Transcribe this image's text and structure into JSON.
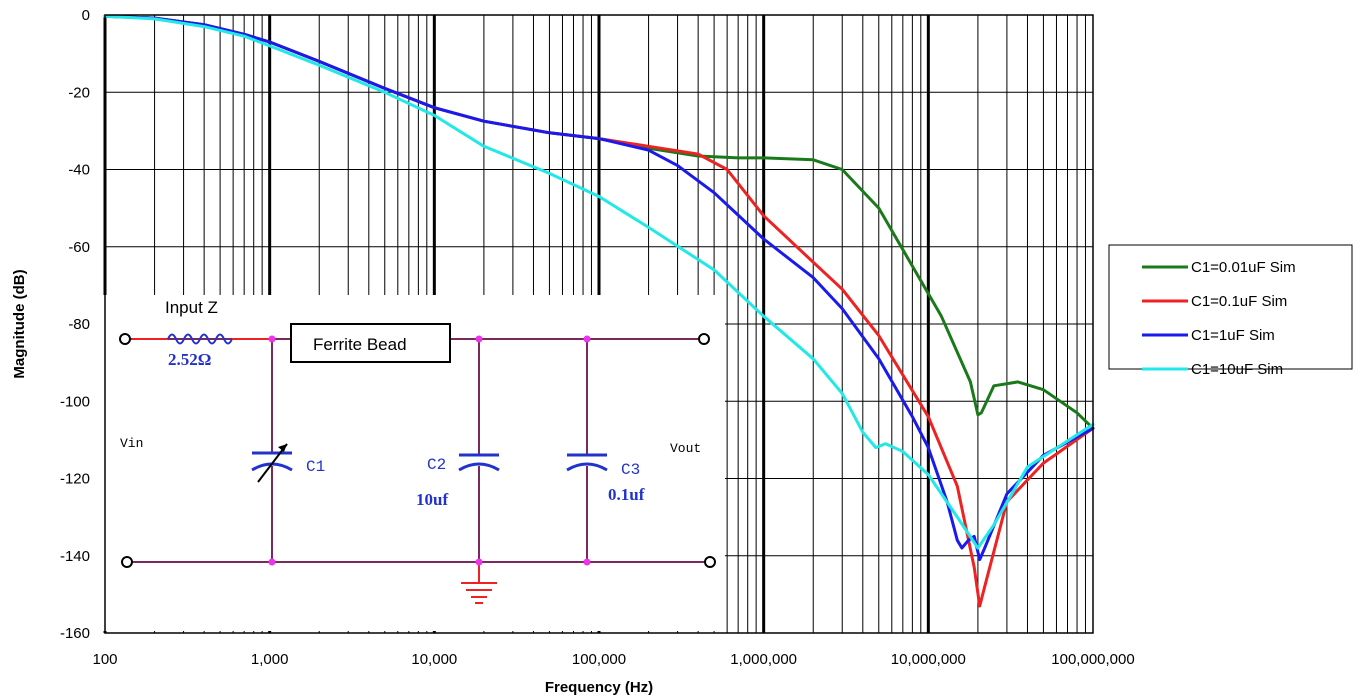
{
  "chart_data": {
    "type": "line",
    "x_scale": "log",
    "xlabel": "Frequency (Hz)",
    "ylabel": "Magnitude (dB)",
    "xlim": [
      100,
      100000000
    ],
    "ylim": [
      -160,
      0
    ],
    "x_ticks": [
      "100",
      "1,000",
      "10,000",
      "100,000",
      "1,000,000",
      "10,000,000",
      "100,000,000"
    ],
    "y_ticks": [
      "0",
      "-20",
      "-40",
      "-60",
      "-80",
      "-100",
      "-120",
      "-140",
      "-160"
    ],
    "grid": true,
    "legend_position": "right",
    "series": [
      {
        "name": "C1=0.01uF Sim",
        "color": "#1a7a1a",
        "points": [
          [
            100,
            -0.3
          ],
          [
            200,
            -0.8
          ],
          [
            400,
            -2.5
          ],
          [
            700,
            -5
          ],
          [
            1000,
            -7
          ],
          [
            2000,
            -12
          ],
          [
            5000,
            -19
          ],
          [
            10000,
            -24
          ],
          [
            20000,
            -27.5
          ],
          [
            50000,
            -30.5
          ],
          [
            100000,
            -32
          ],
          [
            200000,
            -34.5
          ],
          [
            400000,
            -36.5
          ],
          [
            700000,
            -37
          ],
          [
            1000000,
            -37
          ],
          [
            2000000,
            -37.5
          ],
          [
            3000000,
            -40
          ],
          [
            5000000,
            -50
          ],
          [
            8000000,
            -65
          ],
          [
            12000000,
            -78
          ],
          [
            18000000,
            -95
          ],
          [
            20000000,
            -103.5
          ],
          [
            21000000,
            -103
          ],
          [
            25000000,
            -96
          ],
          [
            35000000,
            -95
          ],
          [
            50000000,
            -97
          ],
          [
            80000000,
            -103
          ],
          [
            100000000,
            -107
          ]
        ]
      },
      {
        "name": "C1=0.1uF Sim",
        "color": "#ee2222",
        "points": [
          [
            100,
            -0.3
          ],
          [
            200,
            -0.8
          ],
          [
            400,
            -2.5
          ],
          [
            700,
            -5
          ],
          [
            1000,
            -7
          ],
          [
            2000,
            -12
          ],
          [
            5000,
            -19
          ],
          [
            10000,
            -24
          ],
          [
            20000,
            -27.5
          ],
          [
            50000,
            -30.5
          ],
          [
            100000,
            -32
          ],
          [
            200000,
            -34
          ],
          [
            400000,
            -36
          ],
          [
            600000,
            -40
          ],
          [
            1000000,
            -52
          ],
          [
            2000000,
            -64
          ],
          [
            3000000,
            -71
          ],
          [
            5000000,
            -83
          ],
          [
            10000000,
            -104
          ],
          [
            15000000,
            -122
          ],
          [
            19000000,
            -143
          ],
          [
            20500000,
            -153
          ],
          [
            22000000,
            -148
          ],
          [
            30000000,
            -126
          ],
          [
            50000000,
            -116
          ],
          [
            100000000,
            -107
          ]
        ]
      },
      {
        "name": "C1=1uF Sim",
        "color": "#1a1aee",
        "points": [
          [
            100,
            -0.3
          ],
          [
            200,
            -0.8
          ],
          [
            400,
            -2.5
          ],
          [
            700,
            -5
          ],
          [
            1000,
            -7
          ],
          [
            2000,
            -12
          ],
          [
            5000,
            -19
          ],
          [
            10000,
            -24
          ],
          [
            20000,
            -27.5
          ],
          [
            50000,
            -30.5
          ],
          [
            100000,
            -32
          ],
          [
            200000,
            -35
          ],
          [
            300000,
            -39
          ],
          [
            500000,
            -46
          ],
          [
            1000000,
            -58
          ],
          [
            2000000,
            -68
          ],
          [
            3000000,
            -76
          ],
          [
            5000000,
            -89
          ],
          [
            8000000,
            -104
          ],
          [
            10000000,
            -112
          ],
          [
            13000000,
            -126
          ],
          [
            15000000,
            -136
          ],
          [
            16000000,
            -138
          ],
          [
            17500000,
            -136
          ],
          [
            19000000,
            -135
          ],
          [
            20500000,
            -141
          ],
          [
            22000000,
            -138
          ],
          [
            30000000,
            -124
          ],
          [
            50000000,
            -114
          ],
          [
            100000000,
            -107
          ]
        ]
      },
      {
        "name": "C1=10uF Sim",
        "color": "#22e8e8",
        "points": [
          [
            100,
            -0.3
          ],
          [
            200,
            -1
          ],
          [
            400,
            -3
          ],
          [
            700,
            -5.5
          ],
          [
            1000,
            -8
          ],
          [
            2000,
            -13
          ],
          [
            5000,
            -20
          ],
          [
            10000,
            -26
          ],
          [
            20000,
            -34
          ],
          [
            50000,
            -41
          ],
          [
            100000,
            -47
          ],
          [
            200000,
            -55
          ],
          [
            500000,
            -66
          ],
          [
            1000000,
            -78
          ],
          [
            2000000,
            -89
          ],
          [
            3000000,
            -98
          ],
          [
            4000000,
            -108
          ],
          [
            4800000,
            -112
          ],
          [
            5500000,
            -111
          ],
          [
            7000000,
            -113
          ],
          [
            10000000,
            -119
          ],
          [
            15000000,
            -130
          ],
          [
            20000000,
            -138
          ],
          [
            25000000,
            -132
          ],
          [
            40000000,
            -117
          ],
          [
            100000000,
            -106
          ]
        ]
      }
    ]
  },
  "schematic": {
    "input_z_label": "Input Z",
    "resistor_value": "2.52Ω",
    "ferrite_bead_label": "Ferrite Bead",
    "vin_label": "Vin",
    "vout_label": "Vout",
    "c1_label": "C1",
    "c2_label": "C2",
    "c2_value": "10uf",
    "c3_label": "C3",
    "c3_value": "0.1uf"
  }
}
